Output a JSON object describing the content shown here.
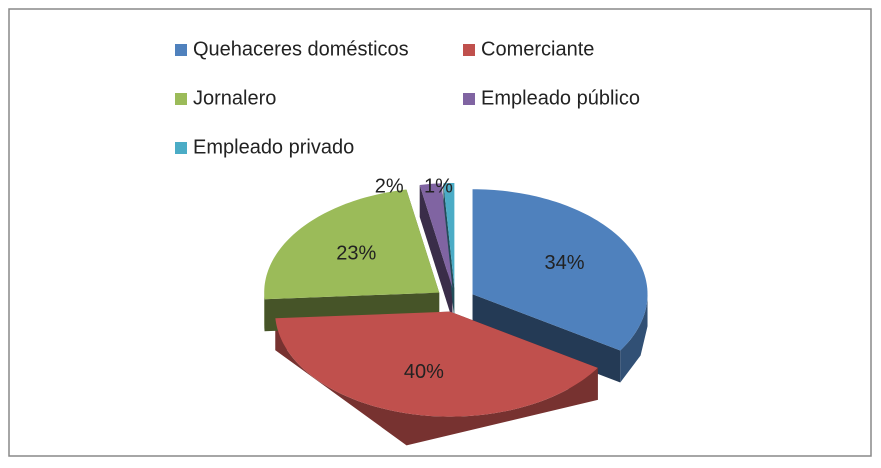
{
  "chart_data": {
    "type": "pie",
    "categories": [
      "Quehaceres domésticos",
      "Comerciante",
      "Jornalero",
      "Empleado público",
      "Empleado privado"
    ],
    "values": [
      34,
      40,
      23,
      2,
      1
    ],
    "value_labels": [
      "34%",
      "40%",
      "23%",
      "2%",
      "1%"
    ],
    "colors": [
      "#4f81bd",
      "#c0504d",
      "#9bbb59",
      "#8064a2",
      "#4bacc6"
    ],
    "legend": "top"
  }
}
